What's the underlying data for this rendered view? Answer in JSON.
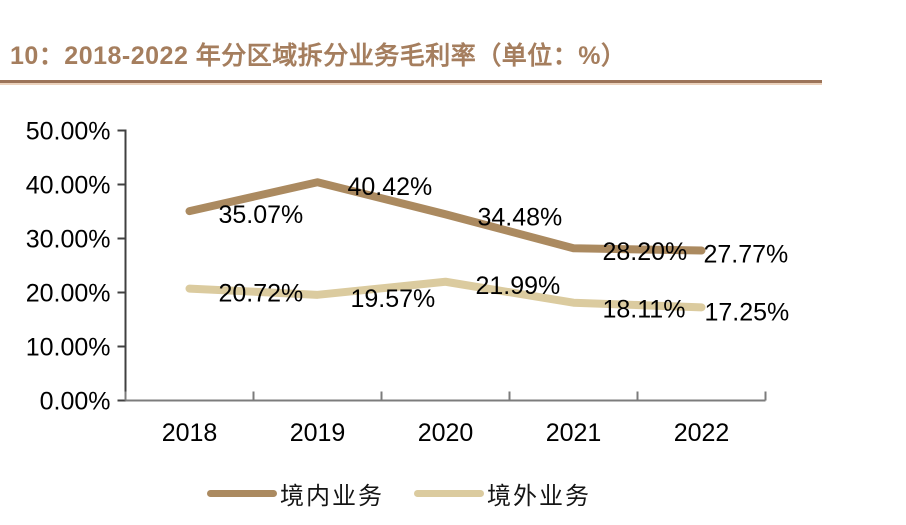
{
  "chart_data": {
    "type": "line",
    "title": "10：2018-2022 年分区域拆分业务毛利率（单位：%）",
    "categories": [
      "2018",
      "2019",
      "2020",
      "2021",
      "2022"
    ],
    "series": [
      {
        "name": "境内业务",
        "color": "#AB8A60",
        "values": [
          35.07,
          40.42,
          34.48,
          28.2,
          27.77
        ]
      },
      {
        "name": "境外业务",
        "color": "#DBCB9F",
        "values": [
          20.72,
          19.57,
          21.99,
          18.11,
          17.25
        ]
      }
    ],
    "data_labels": [
      [
        "35.07%",
        "40.42%",
        "34.48%",
        "28.20%",
        "27.77%"
      ],
      [
        "20.72%",
        "19.57%",
        "21.99%",
        "18.11%",
        "17.25%"
      ]
    ],
    "ylim": [
      0,
      50
    ],
    "y_ticks": [
      {
        "value": 50,
        "label": "50.00%"
      },
      {
        "value": 40,
        "label": "40.00%"
      },
      {
        "value": 30,
        "label": "30.00%"
      },
      {
        "value": 20,
        "label": "20.00%"
      },
      {
        "value": 10,
        "label": "10.00%"
      },
      {
        "value": 0,
        "label": "0.00%"
      }
    ],
    "grid": false,
    "legend_position": "bottom"
  },
  "colors": {
    "title": "#A57E5E",
    "title_rule": "#9C7459",
    "title_rule_light": "#ECD2BC",
    "y_axis": "#404040",
    "x_axis": "#7C7C7C",
    "label": "#000000"
  }
}
